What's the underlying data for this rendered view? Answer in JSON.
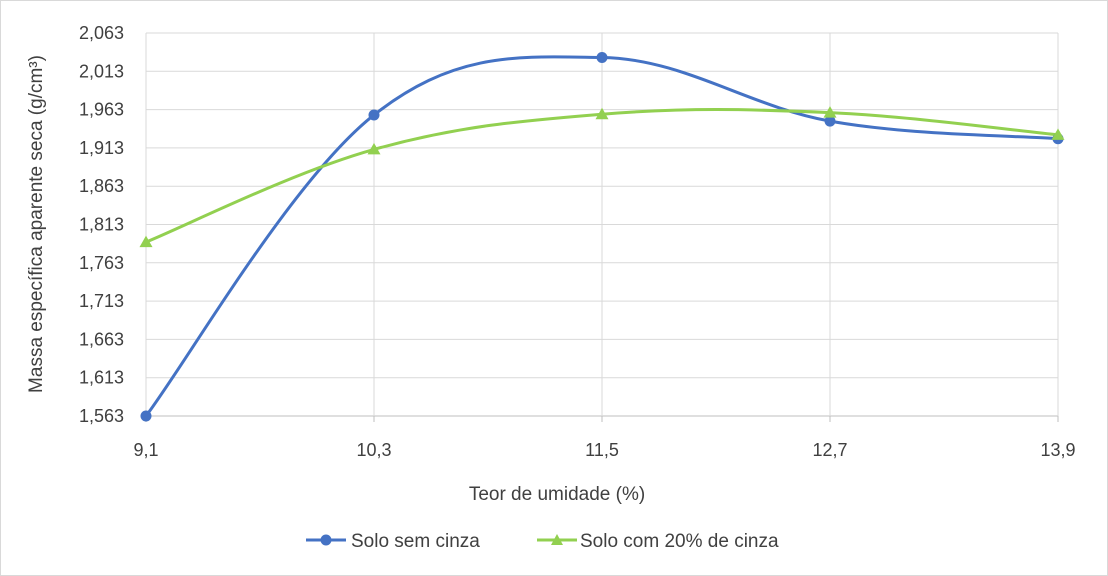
{
  "chart_data": {
    "type": "line",
    "title": "",
    "xlabel": "Teor de umidade (%)",
    "ylabel": "Massa específica aparente seca (g/cm³)",
    "x": [
      9.1,
      10.3,
      11.5,
      12.7,
      13.9
    ],
    "x_tick_labels": [
      "9,1",
      "10,3",
      "11,5",
      "12,7",
      "13,9"
    ],
    "y_tick_labels": [
      "1,563",
      "1,613",
      "1,663",
      "1,713",
      "1,763",
      "1,813",
      "1,863",
      "1,913",
      "1,963",
      "2,013",
      "2,063"
    ],
    "y_ticks": [
      1.563,
      1.613,
      1.663,
      1.713,
      1.763,
      1.813,
      1.863,
      1.913,
      1.963,
      2.013,
      2.063
    ],
    "xlim": [
      9.1,
      13.9
    ],
    "ylim": [
      1.563,
      2.063
    ],
    "grid": true,
    "smooth": true,
    "legend_position": "bottom",
    "series": [
      {
        "name": "Solo sem cinza",
        "color": "#4472c4",
        "marker": "circle",
        "values": [
          1.563,
          1.956,
          2.031,
          1.948,
          1.925
        ]
      },
      {
        "name": "Solo com 20% de cinza",
        "color": "#92d050",
        "marker": "triangle",
        "values": [
          1.79,
          1.911,
          1.957,
          1.959,
          1.93
        ]
      }
    ]
  }
}
